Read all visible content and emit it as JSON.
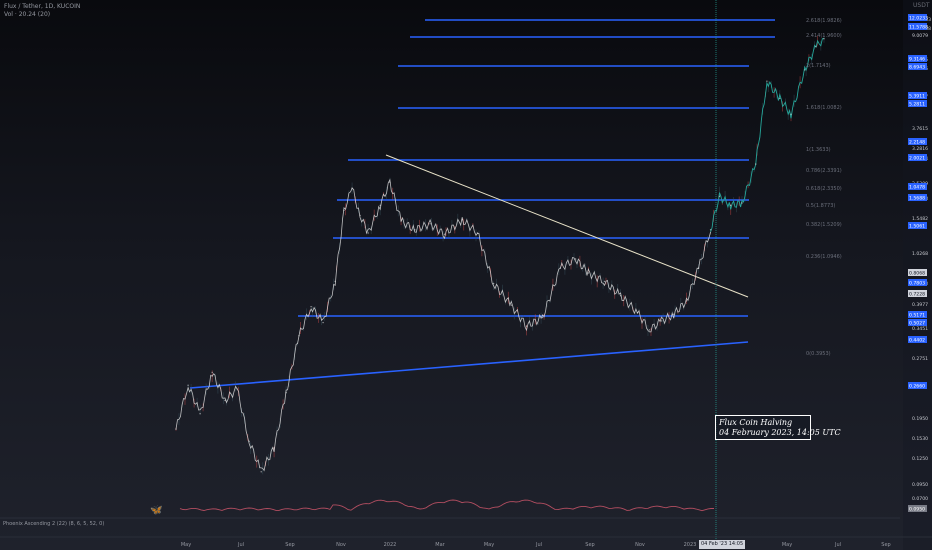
{
  "header": {
    "title": "Flux / Tether, 1D, KUCOIN",
    "subtitle": "Vol · 20.24 (20)"
  },
  "currency_label": "USDT",
  "colors": {
    "level_line": "#2962ff",
    "trend_line": "#e8e2c8",
    "price_line": "#e9e9e9",
    "price_line_late": "#26a69a",
    "red_candle": "#ef5350",
    "halving_line": "#26a69a",
    "oscillator": "#b24d60"
  },
  "annotation": {
    "line1": "Flux Coin Halving",
    "line2": "04 February 2023, 14:05 UTC"
  },
  "oscillator_label": "Phoenix Ascending 2 (22) (8, 6, 5, 52, 0)",
  "halving_date_tag": "04 Feb '23 14:05",
  "chart_data": {
    "type": "line",
    "scale": "log",
    "fib_labels": [
      "2.618(1.9826)",
      "2.414(1.9600)",
      "2(1.7143)",
      "1.618(1.0082)",
      "1(1.3633)",
      "0.786(2.3391)",
      "0.618(2.3350)",
      "0.5(1.8773)",
      "0.382(1.5209)",
      "0.236(1.0946)",
      "0(0.3953)"
    ],
    "y_ticks": [
      "12.0233",
      "11.5788",
      "9.0079",
      "8.2105",
      "6.5016",
      "5.7877",
      "3.7615",
      "3.2816",
      "2.8994",
      "2.5309",
      "1.9498",
      "1.5482",
      "1.0268",
      "0.6583",
      "0.3977",
      "0.3451",
      "0.2751",
      "0.1950",
      "0.1530",
      "0.1250",
      "0.0950",
      "0.0700"
    ],
    "price_tags": [
      "12.0233",
      "11.5788",
      "9.3146",
      "8.6943",
      "5.3911",
      "5.2811",
      "2.2148",
      "2.0021",
      "1.0478",
      "1.5688",
      "1.5061",
      "0.8068",
      "0.7803",
      "0.7228",
      "0.5171",
      "0.5027",
      "0.4402",
      "0.2660",
      "0.0950"
    ],
    "x_ticks": [
      "May",
      "Jul",
      "Sep",
      "Nov",
      "2022",
      "Mar",
      "May",
      "Jul",
      "Sep",
      "Nov",
      "2023",
      "Mar",
      "May",
      "Jul",
      "Sep"
    ],
    "series": [
      {
        "values": [
          {
            "x": "2021-04-10",
            "y": 0.16
          },
          {
            "x": "2021-04-25",
            "y": 0.26
          },
          {
            "x": "2021-05-10",
            "y": 0.19
          },
          {
            "x": "2021-05-25",
            "y": 0.3
          },
          {
            "x": "2021-06-10",
            "y": 0.22
          },
          {
            "x": "2021-06-25",
            "y": 0.25
          },
          {
            "x": "2021-07-10",
            "y": 0.14
          },
          {
            "x": "2021-07-25",
            "y": 0.1
          },
          {
            "x": "2021-08-10",
            "y": 0.13
          },
          {
            "x": "2021-08-25",
            "y": 0.24
          },
          {
            "x": "2021-09-10",
            "y": 0.45
          },
          {
            "x": "2021-09-25",
            "y": 0.62
          },
          {
            "x": "2021-10-10",
            "y": 0.52
          },
          {
            "x": "2021-10-25",
            "y": 0.82
          },
          {
            "x": "2021-11-05",
            "y": 1.8
          },
          {
            "x": "2021-11-15",
            "y": 2.3
          },
          {
            "x": "2021-11-25",
            "y": 1.7
          },
          {
            "x": "2021-12-05",
            "y": 1.4
          },
          {
            "x": "2021-12-20",
            "y": 1.9
          },
          {
            "x": "2022-01-01",
            "y": 2.45
          },
          {
            "x": "2022-01-15",
            "y": 1.6
          },
          {
            "x": "2022-02-01",
            "y": 1.45
          },
          {
            "x": "2022-02-20",
            "y": 1.55
          },
          {
            "x": "2022-03-10",
            "y": 1.38
          },
          {
            "x": "2022-04-01",
            "y": 1.62
          },
          {
            "x": "2022-04-20",
            "y": 1.4
          },
          {
            "x": "2022-05-10",
            "y": 0.8
          },
          {
            "x": "2022-06-01",
            "y": 0.63
          },
          {
            "x": "2022-06-20",
            "y": 0.5
          },
          {
            "x": "2022-07-10",
            "y": 0.55
          },
          {
            "x": "2022-08-01",
            "y": 0.95
          },
          {
            "x": "2022-08-20",
            "y": 1.05
          },
          {
            "x": "2022-09-05",
            "y": 0.9
          },
          {
            "x": "2022-09-25",
            "y": 0.82
          },
          {
            "x": "2022-10-15",
            "y": 0.7
          },
          {
            "x": "2022-11-05",
            "y": 0.58
          },
          {
            "x": "2022-11-20",
            "y": 0.48
          },
          {
            "x": "2022-12-05",
            "y": 0.53
          },
          {
            "x": "2022-12-20",
            "y": 0.57
          },
          {
            "x": "2023-01-05",
            "y": 0.66
          },
          {
            "x": "2023-01-20",
            "y": 0.95
          },
          {
            "x": "2023-02-04",
            "y": 1.45
          },
          {
            "x": "2023-02-15",
            "y": 2.1
          },
          {
            "x": "2023-03-01",
            "y": 1.9
          },
          {
            "x": "2023-03-15",
            "y": 1.95
          },
          {
            "x": "2023-04-01",
            "y": 3.0
          },
          {
            "x": "2023-04-15",
            "y": 7.5
          },
          {
            "x": "2023-05-01",
            "y": 6.2
          },
          {
            "x": "2023-05-15",
            "y": 5.2
          },
          {
            "x": "2023-06-01",
            "y": 8.5
          },
          {
            "x": "2023-06-15",
            "y": 11.0
          },
          {
            "x": "2023-06-25",
            "y": 12.0
          }
        ]
      }
    ]
  }
}
